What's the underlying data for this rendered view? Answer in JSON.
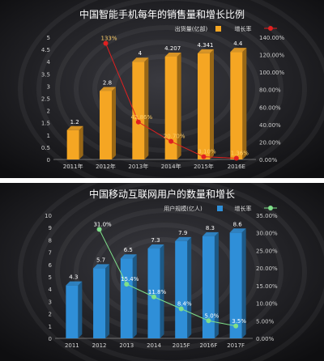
{
  "chart_data": [
    {
      "type": "bar",
      "title": "中国智能手机每年的销售量和增长比例",
      "categories": [
        "2011年",
        "2012年",
        "2013年",
        "2014年",
        "2015年",
        "2016E"
      ],
      "series": [
        {
          "name": "出货量(亿部)",
          "type": "bar",
          "axis": "left",
          "color": "#f5a623",
          "values": [
            1.2,
            2.8,
            4,
            4.207,
            4.341,
            4.4
          ],
          "labels": [
            "1.2",
            "2.8",
            "4",
            "4.207",
            "4.341",
            "4.4"
          ]
        },
        {
          "name": "增长率",
          "type": "line",
          "axis": "right",
          "color": "#e02020",
          "values": [
            null,
            133,
            42.86,
            20.7,
            3.1,
            1.36
          ],
          "labels": [
            "",
            "133%",
            "42.86%",
            "20.70%",
            "3.10%",
            "1.36%"
          ]
        }
      ],
      "left_axis": {
        "ylim": [
          0,
          5
        ],
        "ticks": [
          "0",
          "0.5",
          "1",
          "1.5",
          "2",
          "2.5",
          "3",
          "3.5",
          "4",
          "4.5",
          "5"
        ]
      },
      "right_axis": {
        "ylim": [
          0,
          140
        ],
        "ticks": [
          "0.00%",
          "20.00%",
          "40.00%",
          "60.00%",
          "80.00%",
          "100.00%",
          "120.00%",
          "140.00%"
        ]
      },
      "legend_position": "top-right",
      "background": "#1a1a1d"
    },
    {
      "type": "bar",
      "title": "中国移动互联网用户的数量和增长",
      "categories": [
        "2011",
        "2012",
        "2013",
        "2014",
        "2015F",
        "2016F",
        "2017F"
      ],
      "series": [
        {
          "name": "用户规模(亿人)",
          "type": "bar",
          "axis": "left",
          "color": "#2f8fd8",
          "values": [
            4.3,
            5.7,
            6.5,
            7.3,
            7.9,
            8.3,
            8.6
          ],
          "labels": [
            "4.3",
            "5.7",
            "6.5",
            "7.3",
            "7.9",
            "8.3",
            "8.6"
          ]
        },
        {
          "name": "增长率",
          "type": "line",
          "axis": "right",
          "color": "#7fe08a",
          "values": [
            null,
            31.0,
            15.4,
            11.8,
            8.4,
            5.0,
            3.5
          ],
          "labels": [
            "",
            "31.0%",
            "15.4%",
            "11.8%",
            "8.4%",
            "5.0%",
            "3.5%"
          ]
        }
      ],
      "left_axis": {
        "ylim": [
          0,
          10
        ],
        "ticks": [
          "0",
          "1",
          "2",
          "3",
          "4",
          "5",
          "6",
          "7",
          "8",
          "9",
          "10"
        ]
      },
      "right_axis": {
        "ylim": [
          0,
          35
        ],
        "ticks": [
          "0.00%",
          "5.00%",
          "10.00%",
          "15.00%",
          "20.00%",
          "25.00%",
          "30.00%",
          "35.00%"
        ]
      },
      "legend_position": "top-right",
      "background": "#1a1a1d"
    }
  ]
}
